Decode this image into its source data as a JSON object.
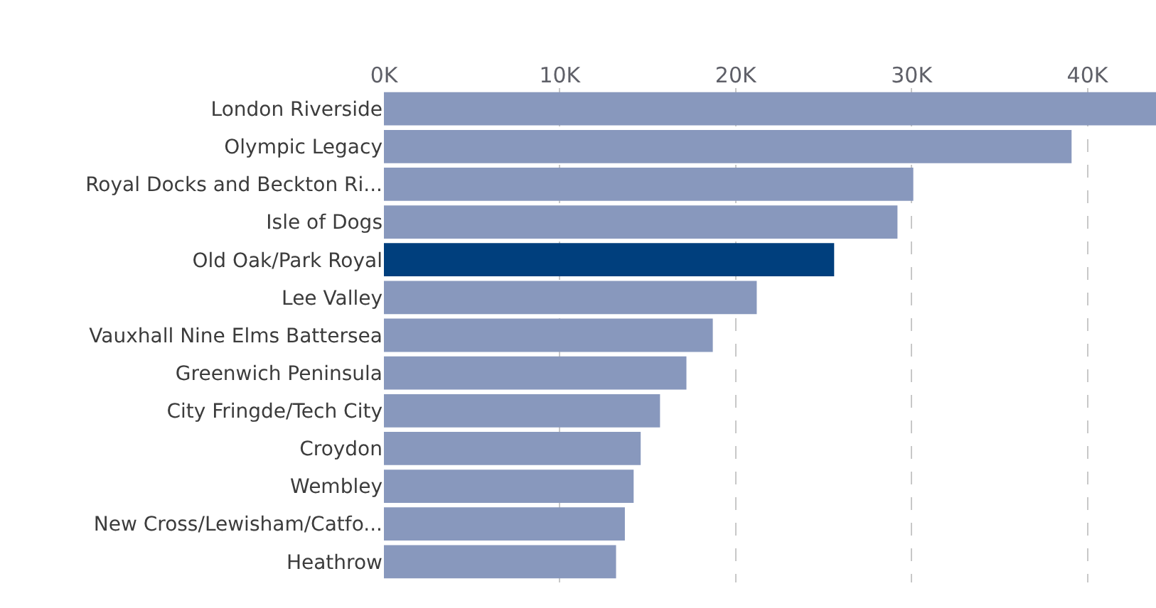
{
  "chart_data": {
    "type": "bar",
    "orientation": "horizontal",
    "categories": [
      "London Riverside",
      "Olympic Legacy",
      "Royal Docks and Beckton Ri...",
      "Isle of Dogs",
      "Old Oak/Park Royal",
      "Lee Valley",
      "Vauxhall Nine Elms Battersea",
      "Greenwich Peninsula",
      "City Fringde/Tech City",
      "Croydon",
      "Wembley",
      "New Cross/Lewisham/Catfo...",
      "Heathrow"
    ],
    "values": [
      43900,
      39100,
      30100,
      29200,
      25600,
      21200,
      18700,
      17200,
      15700,
      14600,
      14200,
      13700,
      13200
    ],
    "colors": [
      "#8898bd",
      "#8898bd",
      "#8898bd",
      "#8898bd",
      "#003f7d",
      "#8898bd",
      "#8898bd",
      "#8898bd",
      "#8898bd",
      "#8898bd",
      "#8898bd",
      "#8898bd",
      "#8898bd"
    ],
    "xlim": [
      0,
      43900
    ],
    "xticks": [
      {
        "value": 0,
        "label": "0K"
      },
      {
        "value": 10000,
        "label": "10K"
      },
      {
        "value": 20000,
        "label": "20K"
      },
      {
        "value": 30000,
        "label": "30K"
      },
      {
        "value": 40000,
        "label": "40K"
      }
    ],
    "grid": "x",
    "legend": false
  }
}
